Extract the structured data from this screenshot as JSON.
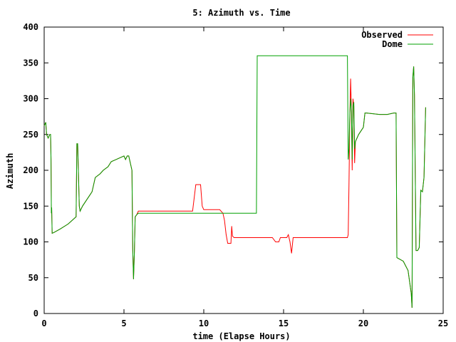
{
  "chart_data": {
    "type": "line",
    "title": "5: Azimuth vs. Time",
    "xlabel": "time (Elapse Hours)",
    "ylabel": "Azimuth",
    "xlim": [
      0,
      25
    ],
    "ylim": [
      0,
      400
    ],
    "xticks": [
      0,
      5,
      10,
      15,
      20,
      25
    ],
    "yticks": [
      0,
      50,
      100,
      150,
      200,
      250,
      300,
      350,
      400
    ],
    "grid": false,
    "legend_position": "top-right",
    "colors": {
      "observed": "#ff0000",
      "dome": "#00a000"
    },
    "series": [
      {
        "name": "Observed",
        "x": [
          0.0,
          0.1,
          0.15,
          0.25,
          0.35,
          0.4,
          0.43,
          0.45,
          0.47,
          0.5,
          0.6,
          1.0,
          1.5,
          2.0,
          2.05,
          2.1,
          2.2,
          2.25,
          2.4,
          2.7,
          3.0,
          3.2,
          3.5,
          3.7,
          4.0,
          4.2,
          4.5,
          4.8,
          5.0,
          5.1,
          5.2,
          5.3,
          5.5,
          5.55,
          5.6,
          5.65,
          5.7,
          5.8,
          5.9,
          6.2,
          7.0,
          8.0,
          9.0,
          9.2,
          9.3,
          9.5,
          9.8,
          9.9,
          10.0,
          10.5,
          11.0,
          11.2,
          11.3,
          11.4,
          11.5,
          11.6,
          11.7,
          11.75,
          11.8,
          11.9,
          12.5,
          13.0,
          13.5,
          14.0,
          14.2,
          14.3,
          14.5,
          14.7,
          14.8,
          15.0,
          15.05,
          15.2,
          15.3,
          15.4,
          15.5,
          15.6,
          16.0,
          17.0,
          18.0,
          18.9,
          19.0,
          19.05,
          19.1,
          19.15,
          19.2,
          19.25,
          19.3,
          19.35,
          19.4,
          19.45,
          19.5,
          19.7,
          20.0,
          20.1,
          20.2,
          21.0,
          21.5,
          21.9,
          22.0,
          22.05,
          22.1,
          22.5,
          22.8,
          23.0,
          23.05,
          23.1,
          23.15,
          23.2,
          23.3,
          23.4,
          23.5,
          23.6,
          23.7,
          23.8,
          23.9
        ],
        "y": [
          262,
          267,
          250,
          245,
          250,
          250,
          215,
          140,
          148,
          112,
          113,
          118,
          125,
          135,
          237,
          237,
          150,
          143,
          150,
          160,
          170,
          190,
          195,
          200,
          205,
          212,
          215,
          218,
          220,
          215,
          220,
          220,
          200,
          90,
          48,
          85,
          135,
          138,
          143,
          143,
          143,
          143,
          143,
          143,
          143,
          180,
          180,
          150,
          145,
          145,
          145,
          140,
          130,
          110,
          98,
          98,
          98,
          122,
          108,
          106,
          106,
          106,
          106,
          106,
          106,
          106,
          100,
          100,
          106,
          106,
          106,
          106,
          110,
          100,
          84,
          106,
          106,
          106,
          106,
          106,
          106,
          110,
          180,
          275,
          328,
          283,
          200,
          300,
          290,
          210,
          240,
          250,
          260,
          280,
          280,
          278,
          278,
          280,
          280,
          280,
          78,
          73,
          60,
          28,
          8,
          330,
          345,
          305,
          88,
          88,
          92,
          172,
          170,
          190,
          288
        ]
      },
      {
        "name": "Dome",
        "x": [
          0.0,
          0.1,
          0.15,
          0.25,
          0.35,
          0.4,
          0.43,
          0.45,
          0.47,
          0.5,
          0.6,
          1.0,
          1.5,
          2.0,
          2.05,
          2.1,
          2.2,
          2.25,
          2.4,
          2.7,
          3.0,
          3.2,
          3.5,
          3.7,
          4.0,
          4.2,
          4.5,
          4.8,
          5.0,
          5.1,
          5.2,
          5.3,
          5.5,
          5.55,
          5.6,
          5.65,
          5.7,
          5.8,
          5.9,
          6.2,
          8.0,
          10.0,
          11.0,
          11.5,
          12.0,
          13.0,
          13.3,
          13.35,
          14.0,
          16.0,
          18.0,
          18.9,
          19.0,
          19.05,
          19.1,
          19.15,
          19.2,
          19.25,
          19.3,
          19.35,
          19.4,
          19.45,
          19.5,
          19.7,
          20.0,
          20.1,
          20.2,
          21.0,
          21.5,
          21.9,
          22.0,
          22.05,
          22.1,
          22.5,
          22.8,
          23.0,
          23.05,
          23.1,
          23.15,
          23.2,
          23.3,
          23.4,
          23.5,
          23.6,
          23.7,
          23.8,
          23.9
        ],
        "y": [
          262,
          267,
          250,
          245,
          250,
          250,
          215,
          140,
          148,
          112,
          113,
          118,
          125,
          135,
          237,
          237,
          150,
          143,
          150,
          160,
          170,
          190,
          195,
          200,
          205,
          212,
          215,
          218,
          220,
          215,
          220,
          220,
          200,
          90,
          48,
          85,
          135,
          138,
          140,
          140,
          140,
          140,
          140,
          140,
          140,
          140,
          140,
          360,
          360,
          360,
          360,
          360,
          360,
          215,
          230,
          280,
          300,
          283,
          215,
          290,
          295,
          230,
          240,
          250,
          260,
          280,
          280,
          278,
          278,
          280,
          280,
          280,
          78,
          73,
          60,
          28,
          8,
          330,
          345,
          305,
          88,
          88,
          92,
          172,
          170,
          190,
          288
        ]
      }
    ]
  }
}
